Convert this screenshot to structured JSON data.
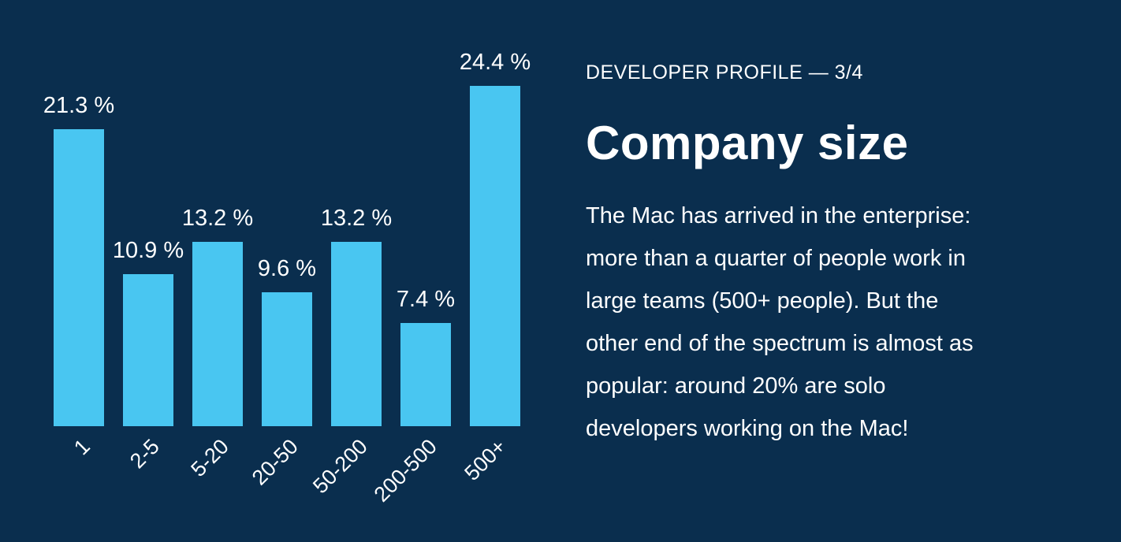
{
  "slide": {
    "background_color": "#0A2E4E",
    "bar_color": "#49C6F1",
    "text_color": "#FFFFFF"
  },
  "panel": {
    "eyebrow": "DEVELOPER PROFILE — 3/4",
    "title": "Company size",
    "body_lines": [
      "The Mac has arrived in the enterprise:",
      "more than a quarter of people work in",
      "large teams (500+ people). But the",
      "other end of the spectrum is almost as",
      "popular: around 20% are solo",
      "developers working on the Mac!"
    ]
  },
  "chart_data": {
    "type": "bar",
    "categories": [
      "1",
      "2-5",
      "5-20",
      "20-50",
      "50-200",
      "200-500",
      "500+"
    ],
    "values": [
      21.3,
      10.9,
      13.2,
      9.6,
      13.2,
      7.4,
      24.4
    ],
    "value_labels": [
      "21.3 %",
      "10.9 %",
      "13.2 %",
      "9.6 %",
      "13.2 %",
      "7.4 %",
      "24.4 %"
    ],
    "unit": "%",
    "title": "",
    "xlabel": "",
    "ylabel": "",
    "ylim": [
      0,
      25
    ],
    "grid": false,
    "axes_visible": false,
    "legend": false,
    "bar_color": "#49C6F1",
    "label_rotation_deg": -45
  }
}
